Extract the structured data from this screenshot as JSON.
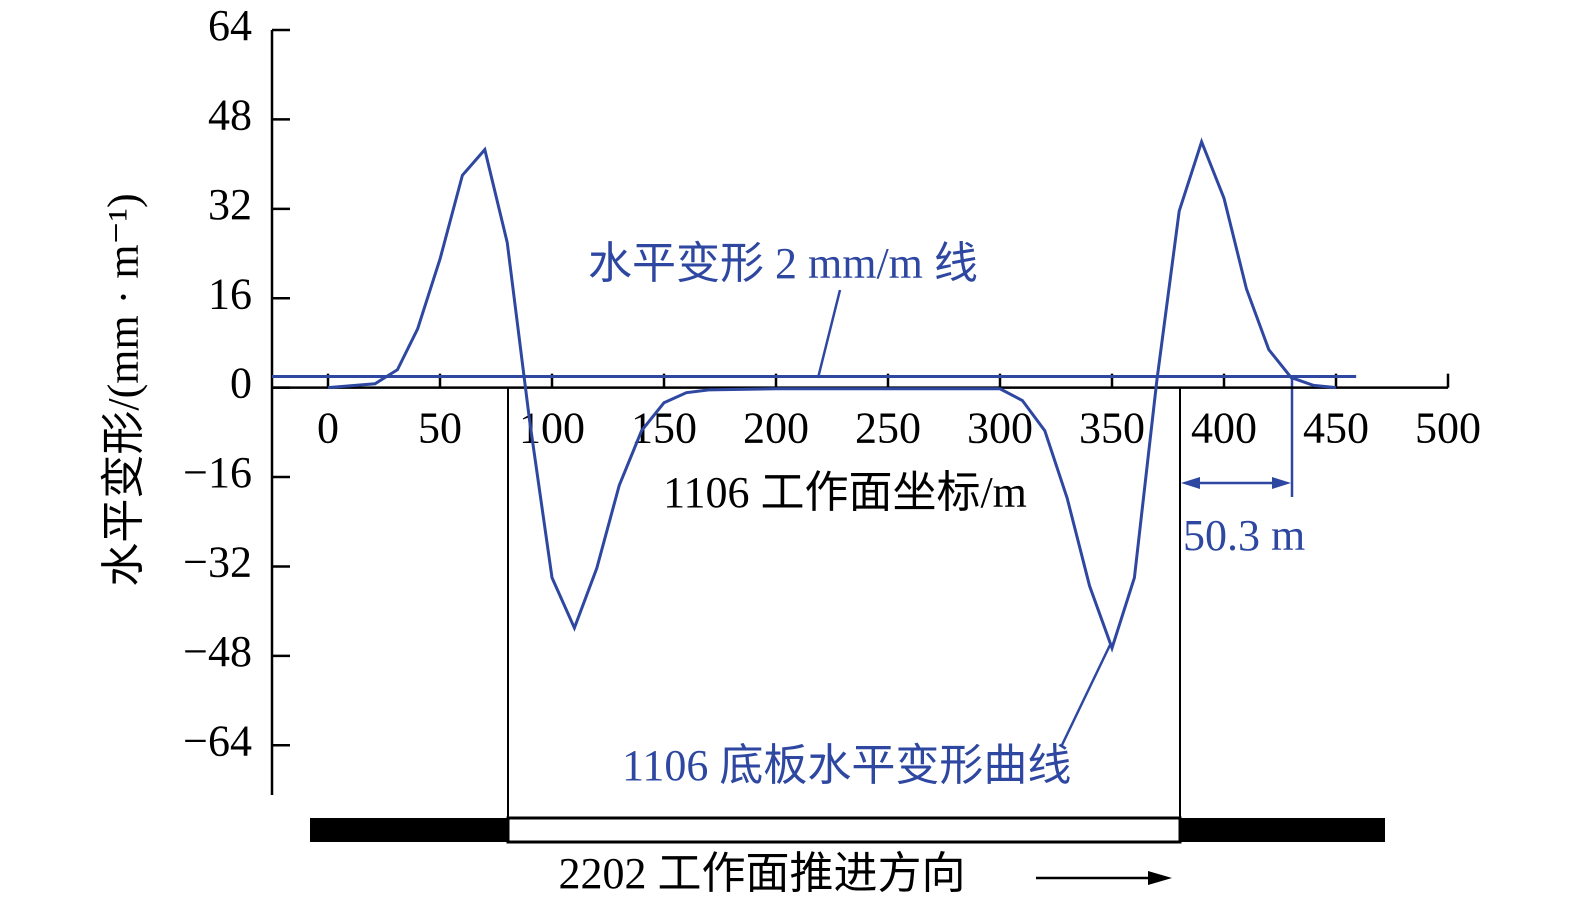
{
  "chart_data": {
    "type": "line",
    "x_label": "1106 工作面坐标/m",
    "y_label": "水平变形/(mm · m⁻¹)",
    "bottom_label": "2202 工作面推进方向",
    "annotations": [
      "水平变形 2 mm/m 线",
      "1106 底板水平变形曲线",
      "50.3 m"
    ],
    "xlim": [
      -25,
      500
    ],
    "xticks": [
      0,
      50,
      100,
      150,
      200,
      250,
      300,
      350,
      400,
      450,
      500
    ],
    "ylim": [
      -72,
      64
    ],
    "yticks": [
      64,
      48,
      32,
      16,
      0,
      {
        "value": -16,
        "label": "−16"
      },
      {
        "value": -32,
        "label": "−32"
      },
      {
        "value": -48,
        "label": "−48"
      },
      {
        "value": -64,
        "label": "−64"
      }
    ],
    "series": [
      {
        "name": "1106 底板水平变形曲线",
        "color": "#2e47a0",
        "x": [
          0,
          21,
          31,
          40,
          50,
          60,
          70,
          80,
          90,
          100,
          110,
          120,
          130,
          140,
          150,
          160,
          170,
          200,
          250,
          300,
          310,
          320,
          330,
          340,
          350,
          360,
          370,
          380,
          390,
          400,
          410,
          420,
          430,
          440,
          450
        ],
        "values": [
          0,
          0.7,
          3.2,
          10.5,
          23,
          38,
          42.6,
          26,
          -5.9,
          -34,
          -43,
          -32.3,
          -17.5,
          -7.7,
          -2.7,
          -0.9,
          -0.4,
          -0.2,
          -0.2,
          -0.2,
          -2.3,
          -7.7,
          -19.8,
          -35.5,
          -46.6,
          -34,
          1.2,
          31.6,
          44,
          33.9,
          17.7,
          6.8,
          1.8,
          0.4,
          0
        ]
      },
      {
        "name": "水平变形 2 mm/m 线",
        "color": "#2e47a0",
        "x": [
          -25,
          459
        ],
        "values": [
          2,
          2
        ]
      }
    ]
  }
}
